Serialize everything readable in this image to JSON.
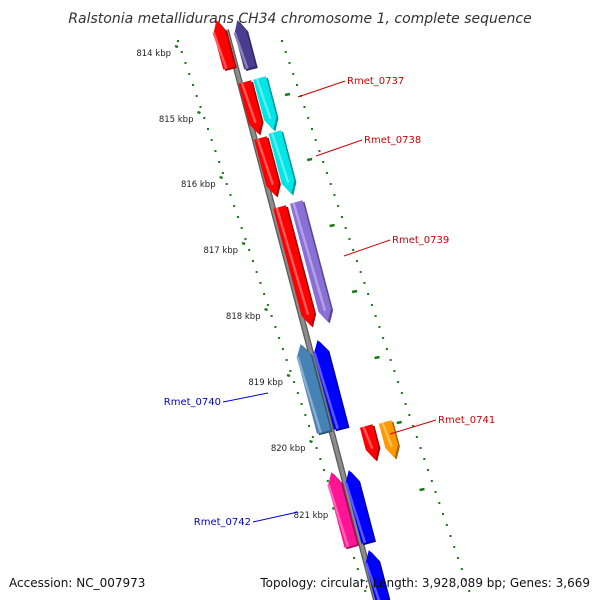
{
  "title": "Ralstonia metallidurans CH34 chromosome 1, complete sequence",
  "footer": {
    "accession": "Accession: NC_007973",
    "stats": "Topology: circular; Length: 3,928,089 bp; Genes: 3,669"
  },
  "scale": {
    "ticks": [
      "814 kbp",
      "815 kbp",
      "816 kbp",
      "817 kbp",
      "818 kbp",
      "819 kbp",
      "820 kbp",
      "821 kbp"
    ]
  },
  "colors": {
    "backbone": "#8c8c8c",
    "tick": "#1a7a1a",
    "label_forward": "#cc0000",
    "label_reverse": "#0000cc"
  },
  "genes": [
    {
      "name": "",
      "strand": "reverse",
      "color": "#ff0000"
    },
    {
      "name": "",
      "strand": "reverse",
      "color": "#4a3d8f"
    },
    {
      "name": "Rmet_0737",
      "strand": "forward",
      "color": "#ff0000"
    },
    {
      "name": "",
      "strand": "forward",
      "color": "#00e6e6"
    },
    {
      "name": "Rmet_0738",
      "strand": "forward",
      "color": "#ff0000"
    },
    {
      "name": "",
      "strand": "forward",
      "color": "#00e6e6"
    },
    {
      "name": "Rmet_0739",
      "strand": "forward",
      "color": "#ff0000"
    },
    {
      "name": "",
      "strand": "forward",
      "color": "#8a6fd6"
    },
    {
      "name": "Rmet_0740",
      "strand": "reverse",
      "color": "#4682b4"
    },
    {
      "name": "",
      "strand": "reverse",
      "color": "#0000ff"
    },
    {
      "name": "Rmet_0741",
      "strand": "forward",
      "color": "#ff0000"
    },
    {
      "name": "",
      "strand": "forward",
      "color": "#ff9900"
    },
    {
      "name": "Rmet_0742",
      "strand": "reverse",
      "color": "#ff1493"
    },
    {
      "name": "",
      "strand": "reverse",
      "color": "#0000ff"
    },
    {
      "name": "",
      "strand": "reverse",
      "color": "#0000ff"
    }
  ]
}
